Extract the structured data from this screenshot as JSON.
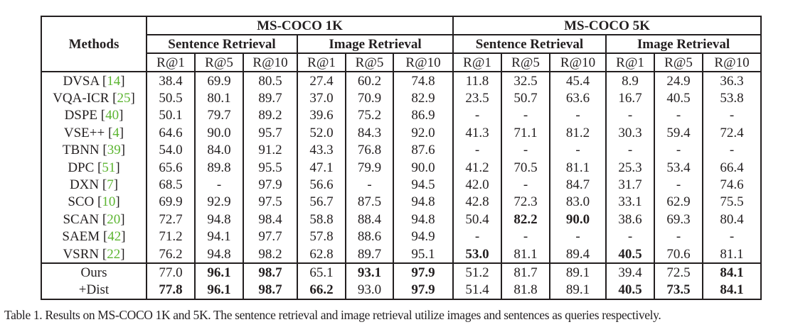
{
  "table": {
    "methods_header": "Methods",
    "datasets": [
      "MS-COCO 1K",
      "MS-COCO 5K"
    ],
    "tasks": [
      "Sentence Retrieval",
      "Image Retrieval",
      "Sentence Retrieval",
      "Image Retrieval"
    ],
    "metrics": [
      "R@1",
      "R@5",
      "R@10",
      "R@1",
      "R@5",
      "R@10",
      "R@1",
      "R@5",
      "R@10",
      "R@1",
      "R@5",
      "R@10"
    ],
    "rows": [
      {
        "method": "DVSA",
        "ref": "14",
        "values": [
          "38.4",
          "69.9",
          "80.5",
          "27.4",
          "60.2",
          "74.8",
          "11.8",
          "32.5",
          "45.4",
          "8.9",
          "24.9",
          "36.3"
        ],
        "bold": []
      },
      {
        "method": "VQA-ICR",
        "ref": "25",
        "values": [
          "50.5",
          "80.1",
          "89.7",
          "37.0",
          "70.9",
          "82.9",
          "23.5",
          "50.7",
          "63.6",
          "16.7",
          "40.5",
          "53.8"
        ],
        "bold": []
      },
      {
        "method": "DSPE",
        "ref": "40",
        "values": [
          "50.1",
          "79.7",
          "89.2",
          "39.6",
          "75.2",
          "86.9",
          "-",
          "-",
          "-",
          "-",
          "-",
          "-"
        ],
        "bold": []
      },
      {
        "method": "VSE++",
        "ref": "4",
        "values": [
          "64.6",
          "90.0",
          "95.7",
          "52.0",
          "84.3",
          "92.0",
          "41.3",
          "71.1",
          "81.2",
          "30.3",
          "59.4",
          "72.4"
        ],
        "bold": []
      },
      {
        "method": "TBNN",
        "ref": "39",
        "values": [
          "54.0",
          "84.0",
          "91.2",
          "43.3",
          "76.8",
          "87.6",
          "-",
          "-",
          "-",
          "-",
          "-",
          "-"
        ],
        "bold": []
      },
      {
        "method": "DPC",
        "ref": "51",
        "values": [
          "65.6",
          "89.8",
          "95.5",
          "47.1",
          "79.9",
          "90.0",
          "41.2",
          "70.5",
          "81.1",
          "25.3",
          "53.4",
          "66.4"
        ],
        "bold": []
      },
      {
        "method": "DXN",
        "ref": "7",
        "values": [
          "68.5",
          "-",
          "97.9",
          "56.6",
          "-",
          "94.5",
          "42.0",
          "-",
          "84.7",
          "31.7",
          "-",
          "74.6"
        ],
        "bold": []
      },
      {
        "method": "SCO",
        "ref": "10",
        "values": [
          "69.9",
          "92.9",
          "97.5",
          "56.7",
          "87.5",
          "94.8",
          "42.8",
          "72.3",
          "83.0",
          "33.1",
          "62.9",
          "75.5"
        ],
        "bold": []
      },
      {
        "method": "SCAN",
        "ref": "20",
        "values": [
          "72.7",
          "94.8",
          "98.4",
          "58.8",
          "88.4",
          "94.8",
          "50.4",
          "82.2",
          "90.0",
          "38.6",
          "69.3",
          "80.4"
        ],
        "bold": [
          7,
          8
        ]
      },
      {
        "method": "SAEM",
        "ref": "42",
        "values": [
          "71.2",
          "94.1",
          "97.7",
          "57.8",
          "88.6",
          "94.9",
          "-",
          "-",
          "-",
          "-",
          "-",
          "-"
        ],
        "bold": []
      },
      {
        "method": "VSRN",
        "ref": "22",
        "values": [
          "76.2",
          "94.8",
          "98.2",
          "62.8",
          "89.7",
          "95.1",
          "53.0",
          "81.1",
          "89.4",
          "40.5",
          "70.6",
          "81.1"
        ],
        "bold": [
          6,
          9
        ]
      },
      {
        "method": "Ours",
        "ref": "",
        "values": [
          "77.0",
          "96.1",
          "98.7",
          "65.1",
          "93.1",
          "97.9",
          "51.2",
          "81.7",
          "89.1",
          "39.4",
          "72.5",
          "84.1"
        ],
        "bold": [
          1,
          2,
          4,
          5,
          11
        ]
      },
      {
        "method": "+Dist",
        "ref": "",
        "values": [
          "77.8",
          "96.1",
          "98.7",
          "66.2",
          "93.0",
          "97.9",
          "51.4",
          "81.8",
          "89.1",
          "40.5",
          "73.5",
          "84.1"
        ],
        "bold": [
          0,
          1,
          2,
          3,
          5,
          9,
          10,
          11
        ]
      }
    ]
  },
  "caption": "Table 1. Results on MS-COCO 1K and 5K. The sentence retrieval and image retrieval utilize images and sentences as queries respectively.",
  "colors": {
    "text": "#231f20",
    "citation": "#5cb531"
  }
}
